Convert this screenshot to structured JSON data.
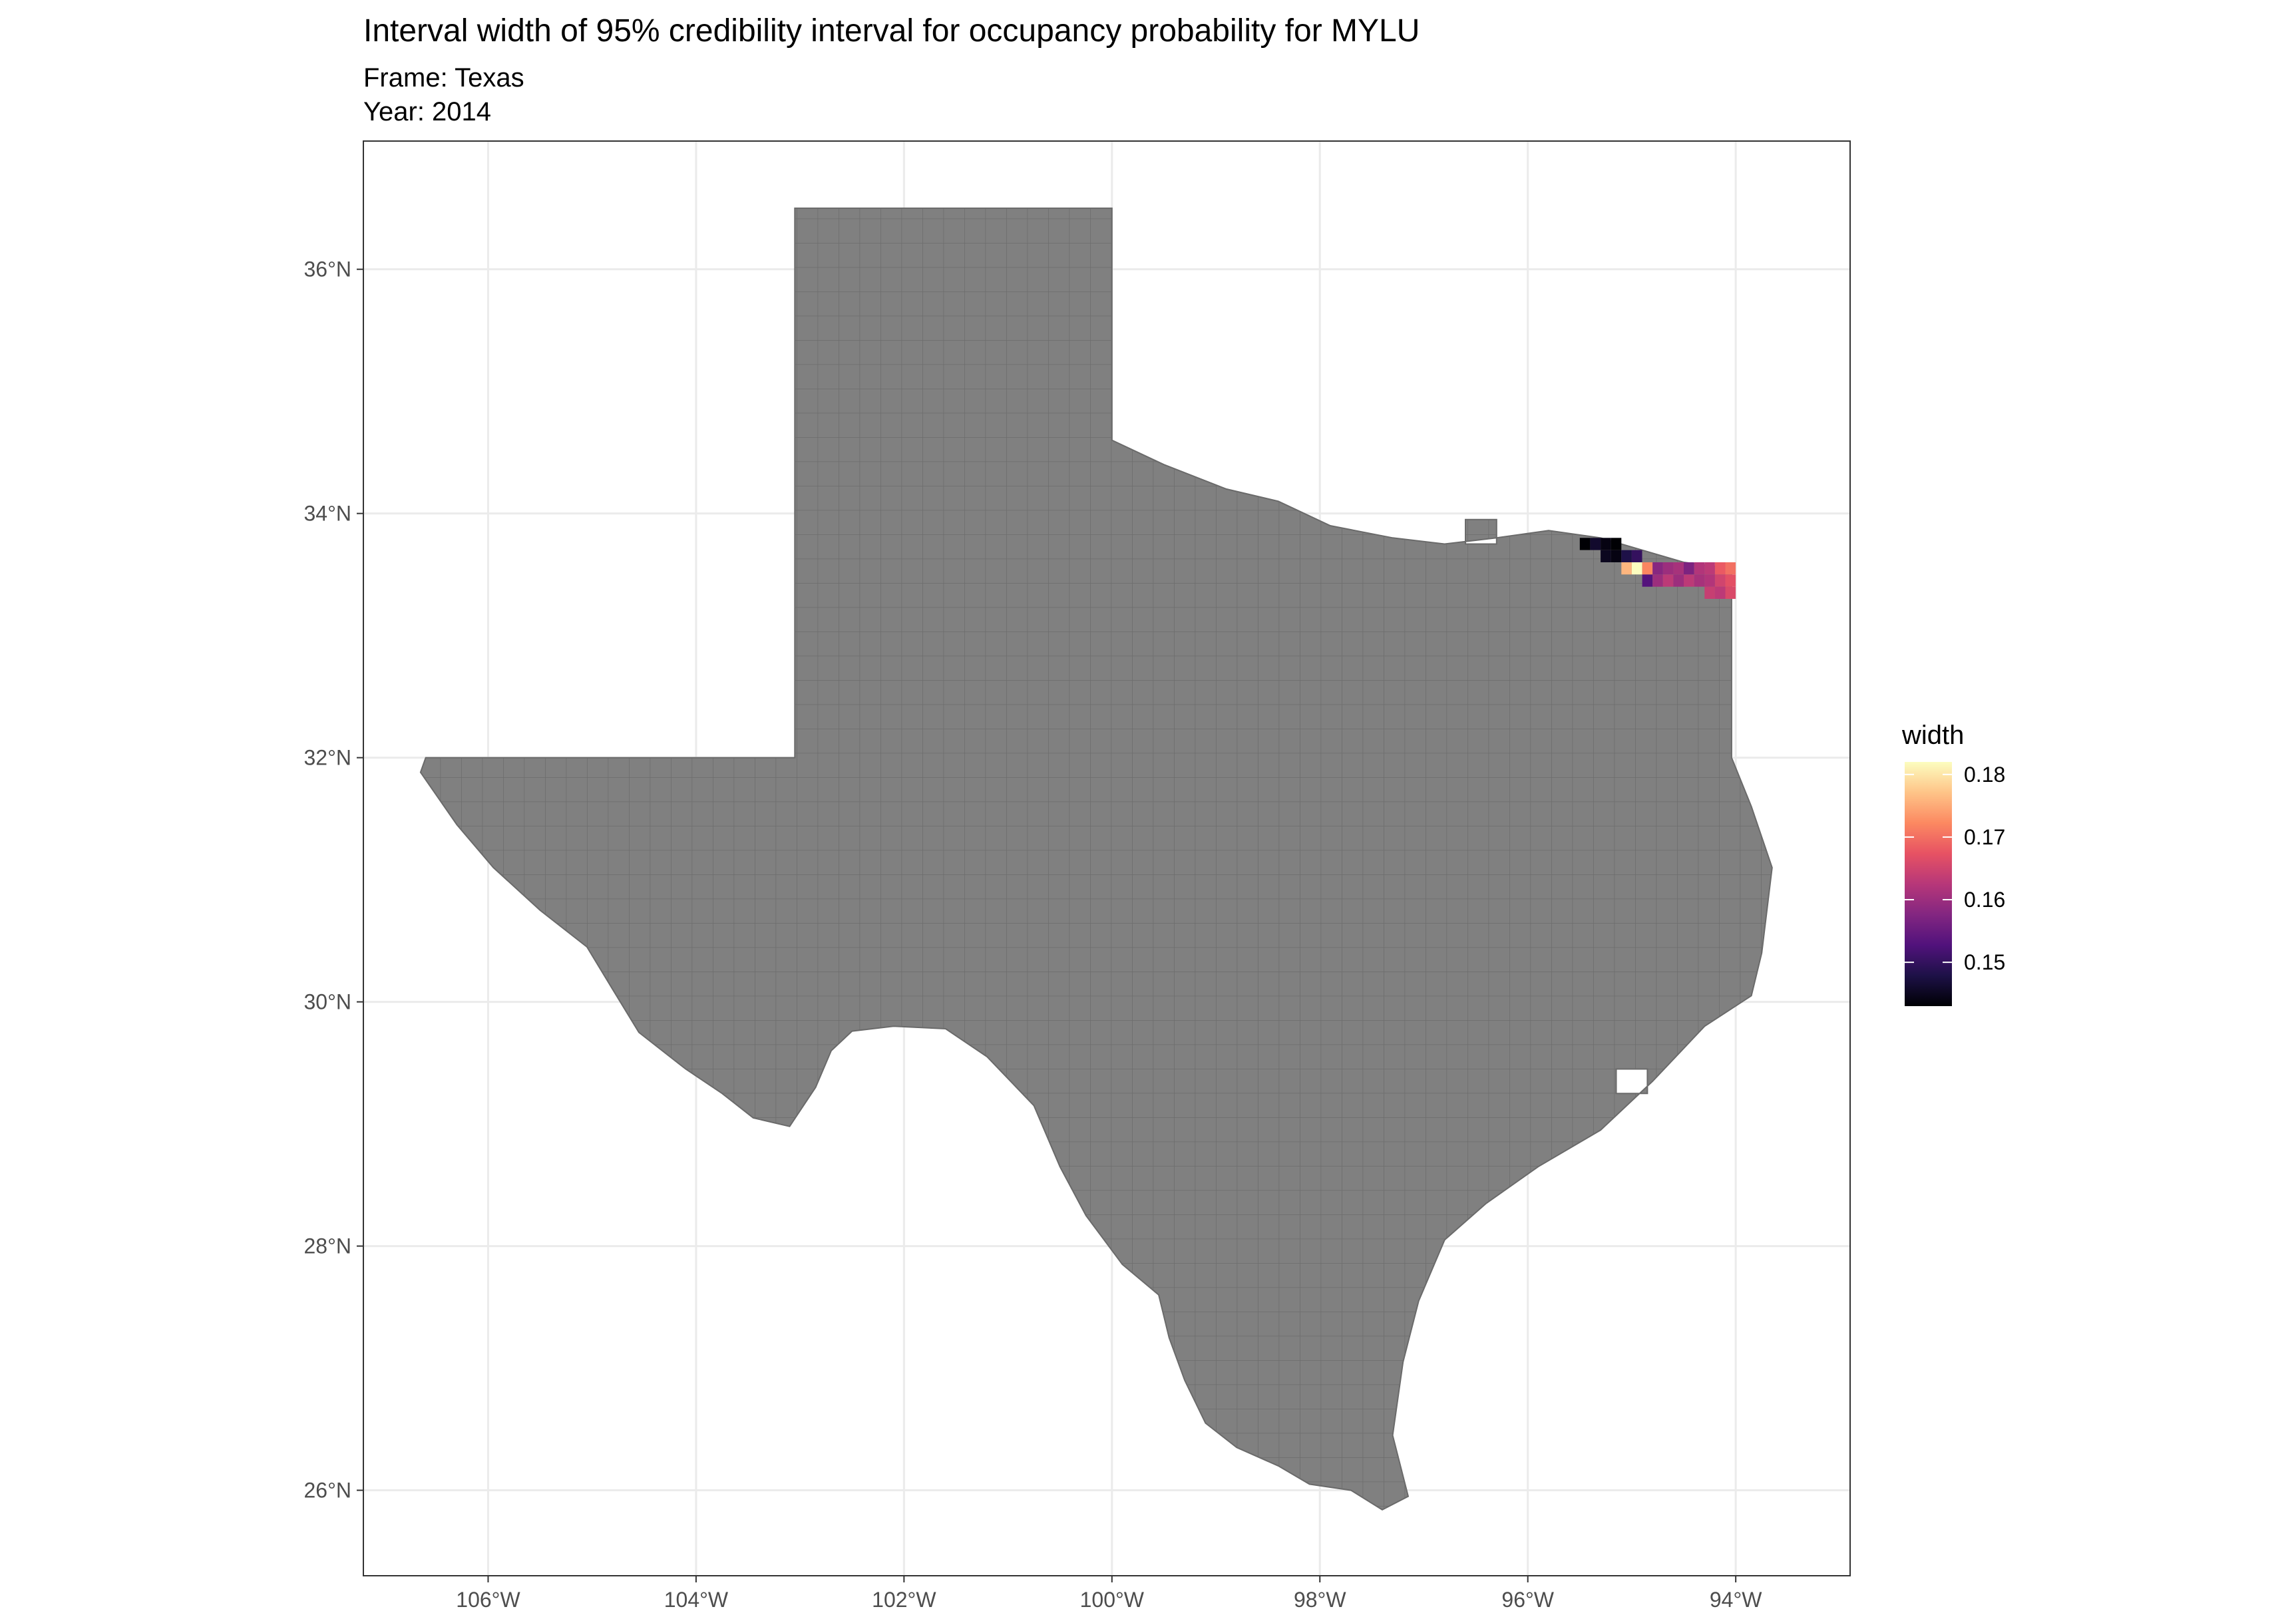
{
  "title": "Interval width of 95% credibility interval for occupancy probability for MYLU",
  "subtitle_frame": "Frame: Texas",
  "subtitle_year": "Year: 2014",
  "map": {
    "region": "Texas",
    "base_fill": "#808080",
    "base_stroke": "#6a6a6a",
    "grid_visible": true,
    "lon_range": [
      -107.2,
      -92.9
    ],
    "lat_range": [
      25.3,
      37.05
    ],
    "x_ticks": [
      {
        "value": -106,
        "label": "106°W"
      },
      {
        "value": -104,
        "label": "104°W"
      },
      {
        "value": -102,
        "label": "102°W"
      },
      {
        "value": -100,
        "label": "100°W"
      },
      {
        "value": -98,
        "label": "98°W"
      },
      {
        "value": -96,
        "label": "96°W"
      },
      {
        "value": -94,
        "label": "94°W"
      }
    ],
    "y_ticks": [
      {
        "value": 26,
        "label": "26°N"
      },
      {
        "value": 28,
        "label": "28°N"
      },
      {
        "value": 30,
        "label": "30°N"
      },
      {
        "value": 32,
        "label": "32°N"
      },
      {
        "value": 34,
        "label": "34°N"
      },
      {
        "value": 36,
        "label": "36°N"
      }
    ],
    "outline": [
      [
        -103.04,
        36.5
      ],
      [
        -100.0,
        36.5
      ],
      [
        -100.0,
        34.6
      ],
      [
        -99.5,
        34.4
      ],
      [
        -98.9,
        34.2
      ],
      [
        -98.4,
        34.1
      ],
      [
        -97.9,
        33.9
      ],
      [
        -97.3,
        33.8
      ],
      [
        -96.8,
        33.75
      ],
      [
        -96.3,
        33.8
      ],
      [
        -95.8,
        33.86
      ],
      [
        -95.3,
        33.8
      ],
      [
        -94.9,
        33.7
      ],
      [
        -94.5,
        33.6
      ],
      [
        -94.04,
        33.55
      ],
      [
        -94.04,
        33.0
      ],
      [
        -94.04,
        32.0
      ],
      [
        -93.85,
        31.6
      ],
      [
        -93.65,
        31.1
      ],
      [
        -93.75,
        30.4
      ],
      [
        -93.85,
        30.05
      ],
      [
        -94.3,
        29.8
      ],
      [
        -94.8,
        29.35
      ],
      [
        -95.3,
        28.95
      ],
      [
        -95.9,
        28.65
      ],
      [
        -96.4,
        28.35
      ],
      [
        -96.8,
        28.05
      ],
      [
        -97.05,
        27.55
      ],
      [
        -97.2,
        27.05
      ],
      [
        -97.3,
        26.45
      ],
      [
        -97.15,
        25.95
      ],
      [
        -97.4,
        25.84
      ],
      [
        -97.7,
        26.0
      ],
      [
        -98.1,
        26.05
      ],
      [
        -98.4,
        26.2
      ],
      [
        -98.8,
        26.35
      ],
      [
        -99.1,
        26.55
      ],
      [
        -99.3,
        26.9
      ],
      [
        -99.45,
        27.25
      ],
      [
        -99.55,
        27.6
      ],
      [
        -99.9,
        27.85
      ],
      [
        -100.25,
        28.25
      ],
      [
        -100.5,
        28.65
      ],
      [
        -100.75,
        29.15
      ],
      [
        -101.2,
        29.55
      ],
      [
        -101.6,
        29.78
      ],
      [
        -102.1,
        29.8
      ],
      [
        -102.5,
        29.76
      ],
      [
        -102.7,
        29.6
      ],
      [
        -102.85,
        29.3
      ],
      [
        -103.1,
        28.98
      ],
      [
        -103.45,
        29.05
      ],
      [
        -103.75,
        29.25
      ],
      [
        -104.1,
        29.45
      ],
      [
        -104.55,
        29.75
      ],
      [
        -104.8,
        30.1
      ],
      [
        -105.05,
        30.45
      ],
      [
        -105.5,
        30.75
      ],
      [
        -105.95,
        31.1
      ],
      [
        -106.3,
        31.45
      ],
      [
        -106.65,
        31.88
      ],
      [
        -106.6,
        32.0
      ],
      [
        -104.9,
        32.0
      ],
      [
        -103.05,
        32.0
      ],
      [
        -103.05,
        34.0
      ],
      [
        -103.05,
        36.5
      ]
    ],
    "holes": [
      [
        [
          -96.6,
          33.95
        ],
        [
          -96.3,
          33.95
        ],
        [
          -96.3,
          33.75
        ],
        [
          -96.6,
          33.75
        ]
      ],
      [
        [
          -95.15,
          29.25
        ],
        [
          -94.85,
          29.25
        ],
        [
          -94.85,
          29.45
        ],
        [
          -95.15,
          29.45
        ]
      ]
    ]
  },
  "colored_cells": [
    {
      "lon": -95.45,
      "lat": 33.75,
      "width": 0.143
    },
    {
      "lon": -95.35,
      "lat": 33.75,
      "width": 0.146
    },
    {
      "lon": -95.25,
      "lat": 33.75,
      "width": 0.144
    },
    {
      "lon": -95.15,
      "lat": 33.75,
      "width": 0.143
    },
    {
      "lon": -95.25,
      "lat": 33.65,
      "width": 0.145
    },
    {
      "lon": -95.15,
      "lat": 33.65,
      "width": 0.144
    },
    {
      "lon": -95.05,
      "lat": 33.65,
      "width": 0.148
    },
    {
      "lon": -94.95,
      "lat": 33.65,
      "width": 0.15
    },
    {
      "lon": -95.05,
      "lat": 33.55,
      "width": 0.176
    },
    {
      "lon": -94.95,
      "lat": 33.55,
      "width": 0.182
    },
    {
      "lon": -94.85,
      "lat": 33.55,
      "width": 0.172
    },
    {
      "lon": -94.75,
      "lat": 33.55,
      "width": 0.158
    },
    {
      "lon": -94.65,
      "lat": 33.55,
      "width": 0.16
    },
    {
      "lon": -94.55,
      "lat": 33.55,
      "width": 0.161
    },
    {
      "lon": -94.45,
      "lat": 33.55,
      "width": 0.157
    },
    {
      "lon": -94.35,
      "lat": 33.55,
      "width": 0.162
    },
    {
      "lon": -94.25,
      "lat": 33.55,
      "width": 0.163
    },
    {
      "lon": -94.15,
      "lat": 33.55,
      "width": 0.168
    },
    {
      "lon": -94.05,
      "lat": 33.55,
      "width": 0.17
    },
    {
      "lon": -94.85,
      "lat": 33.45,
      "width": 0.153
    },
    {
      "lon": -94.75,
      "lat": 33.45,
      "width": 0.16
    },
    {
      "lon": -94.65,
      "lat": 33.45,
      "width": 0.163
    },
    {
      "lon": -94.55,
      "lat": 33.45,
      "width": 0.16
    },
    {
      "lon": -94.45,
      "lat": 33.45,
      "width": 0.163
    },
    {
      "lon": -94.35,
      "lat": 33.45,
      "width": 0.161
    },
    {
      "lon": -94.25,
      "lat": 33.45,
      "width": 0.162
    },
    {
      "lon": -94.15,
      "lat": 33.45,
      "width": 0.165
    },
    {
      "lon": -94.05,
      "lat": 33.45,
      "width": 0.167
    },
    {
      "lon": -94.25,
      "lat": 33.35,
      "width": 0.164
    },
    {
      "lon": -94.15,
      "lat": 33.35,
      "width": 0.163
    },
    {
      "lon": -94.05,
      "lat": 33.35,
      "width": 0.166
    }
  ],
  "legend": {
    "title": "width",
    "min": 0.143,
    "max": 0.182,
    "breaks": [
      {
        "value": 0.15,
        "label": "0.15"
      },
      {
        "value": 0.16,
        "label": "0.16"
      },
      {
        "value": 0.17,
        "label": "0.17"
      },
      {
        "value": 0.18,
        "label": "0.18"
      }
    ],
    "palette": [
      "#000004",
      "#1d1147",
      "#51127c",
      "#832681",
      "#b73779",
      "#e75263",
      "#fc8961",
      "#fec488",
      "#fcfdbf"
    ]
  }
}
